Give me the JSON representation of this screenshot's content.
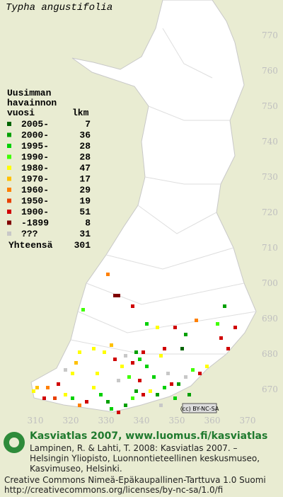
{
  "title": "Typha angustifolia",
  "legend": {
    "heading": [
      "Uusimman",
      "havainnon",
      "vuosi"
    ],
    "count_heading": "lkm",
    "entries": [
      {
        "label": "2005-",
        "count": 7,
        "color": "#006400"
      },
      {
        "label": "2000-",
        "count": 36,
        "color": "#00a000"
      },
      {
        "label": "1995-",
        "count": 28,
        "color": "#00d000"
      },
      {
        "label": "1990-",
        "count": 28,
        "color": "#40ff00"
      },
      {
        "label": "1980-",
        "count": 47,
        "color": "#ffff00"
      },
      {
        "label": "1970-",
        "count": 17,
        "color": "#ffc000"
      },
      {
        "label": "1960-",
        "count": 29,
        "color": "#ff8000"
      },
      {
        "label": "1950-",
        "count": 19,
        "color": "#e84000"
      },
      {
        "label": "1900-",
        "count": 51,
        "color": "#d00000"
      },
      {
        "label": "-1899",
        "count": 8,
        "color": "#800000"
      },
      {
        "label": "???",
        "count": 31,
        "color": "#c8c8c8"
      }
    ],
    "total_label": "Yhteensä",
    "total": 301
  },
  "grid": {
    "northing": [
      770,
      760,
      750,
      740,
      730,
      720,
      710,
      700,
      690,
      680,
      670
    ],
    "easting": [
      310,
      320,
      330,
      340,
      350,
      360,
      370
    ]
  },
  "observations": [
    [
      330,
      703,
      6
    ],
    [
      332,
      697,
      9
    ],
    [
      333,
      697,
      9
    ],
    [
      323,
      693,
      3
    ],
    [
      337,
      694,
      8
    ],
    [
      344,
      688,
      4
    ],
    [
      341,
      689,
      2
    ],
    [
      349,
      688,
      8
    ],
    [
      352,
      686,
      1
    ],
    [
      355,
      690,
      6
    ],
    [
      361,
      689,
      3
    ],
    [
      362,
      685,
      8
    ],
    [
      363,
      694,
      1
    ],
    [
      366,
      688,
      8
    ],
    [
      364,
      682,
      8
    ],
    [
      351,
      682,
      0
    ],
    [
      346,
      682,
      8
    ],
    [
      345,
      680,
      4
    ],
    [
      340,
      681,
      8
    ],
    [
      339,
      679,
      2
    ],
    [
      338,
      681,
      1
    ],
    [
      337,
      678,
      8
    ],
    [
      335,
      680,
      10
    ],
    [
      334,
      677,
      4
    ],
    [
      332,
      679,
      8
    ],
    [
      331,
      683,
      5
    ],
    [
      329,
      681,
      4
    ],
    [
      326,
      682,
      4
    ],
    [
      322,
      681,
      4
    ],
    [
      321,
      678,
      5
    ],
    [
      320,
      675,
      4
    ],
    [
      318,
      676,
      10
    ],
    [
      316,
      672,
      8
    ],
    [
      313,
      671,
      6
    ],
    [
      310,
      671,
      5
    ],
    [
      309,
      670,
      4
    ],
    [
      312,
      668,
      8
    ],
    [
      315,
      668,
      7
    ],
    [
      318,
      669,
      4
    ],
    [
      320,
      668,
      2
    ],
    [
      322,
      666,
      6
    ],
    [
      324,
      667,
      8
    ],
    [
      326,
      671,
      4
    ],
    [
      328,
      669,
      2
    ],
    [
      330,
      667,
      1
    ],
    [
      331,
      665,
      2
    ],
    [
      333,
      664,
      8
    ],
    [
      335,
      666,
      1
    ],
    [
      337,
      668,
      3
    ],
    [
      338,
      670,
      1
    ],
    [
      340,
      669,
      8
    ],
    [
      342,
      670,
      4
    ],
    [
      344,
      669,
      1
    ],
    [
      346,
      671,
      2
    ],
    [
      348,
      672,
      8
    ],
    [
      350,
      672,
      1
    ],
    [
      352,
      674,
      10
    ],
    [
      354,
      676,
      3
    ],
    [
      356,
      675,
      8
    ],
    [
      358,
      677,
      4
    ],
    [
      347,
      675,
      10
    ],
    [
      343,
      674,
      2
    ],
    [
      339,
      673,
      8
    ],
    [
      336,
      674,
      3
    ],
    [
      333,
      673,
      10
    ],
    [
      327,
      675,
      4
    ],
    [
      341,
      677,
      2
    ],
    [
      353,
      669,
      1
    ],
    [
      345,
      666,
      10
    ],
    [
      349,
      668,
      2
    ]
  ],
  "badge": "(cc) BY-NC-SA",
  "footer": {
    "heading": "Kasviatlas 2007, www.luomus.fi/kasviatlas",
    "citation": [
      "Lampinen, R. & Lahti, T. 2008: Kasviatlas 2007. –",
      "Helsingin Yliopisto, Luonnontieteellinen keskusmuseo,",
      "Kasvimuseo, Helsinki."
    ],
    "license": [
      "Creative Commons Nimeä-Epäkaupallinen-Tarttuva 1.0 Suomi",
      "http://creativecommons.org/licenses/by-nc-sa/1.0/fi"
    ]
  }
}
